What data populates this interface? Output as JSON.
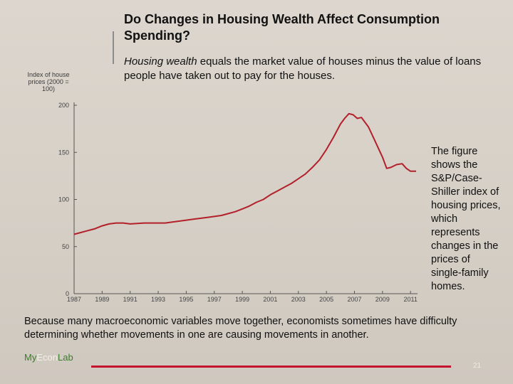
{
  "slide": {
    "title": "Do Changes in Housing Wealth Affect Consumption Spending?",
    "subtitle_em": "Housing wealth",
    "subtitle_rest": " equals the market value of houses minus the value of loans people have taken out to pay for the houses.",
    "side_note": "The figure shows the S&P/Case-Shiller index of housing prices, which represents changes in the prices of single-family homes.",
    "bottom_text": "Because many macroeconomic variables move together, economists sometimes have difficulty determining whether movements in one are causing movements in another.",
    "logo": {
      "my": "My",
      "econ": "Econ",
      "lab": "Lab"
    },
    "page_number": "21"
  },
  "chart_data": {
    "type": "line",
    "ylabel": "Index of house prices (2000 = 100)",
    "xlabel": "",
    "xlim": [
      1987,
      2011.5
    ],
    "ylim": [
      0,
      200
    ],
    "y_ticks": [
      0,
      50,
      100,
      150,
      200
    ],
    "x_ticks": [
      1987,
      1989,
      1991,
      1993,
      1995,
      1997,
      1999,
      2001,
      2003,
      2005,
      2007,
      2009,
      2011
    ],
    "grid": false,
    "line_color": "#b3202a",
    "series": [
      {
        "x": [
          1987,
          1987.5,
          1988,
          1988.5,
          1989,
          1989.5,
          1990,
          1990.5,
          1991,
          1991.5,
          1992,
          1993,
          1993.5,
          1994,
          1995,
          1995.5,
          1996,
          1996.5,
          1997,
          1997.5,
          1998,
          1998.5,
          1999,
          1999.5,
          2000,
          2000.5,
          2001,
          2001.5,
          2002,
          2002.5,
          2003,
          2003.5,
          2004,
          2004.5,
          2005,
          2005.5,
          2006,
          2006.3,
          2006.6,
          2006.9,
          2007.2,
          2007.5,
          2008,
          2008.5,
          2009,
          2009.3,
          2009.6,
          2010,
          2010.4,
          2010.7,
          2011,
          2011.4
        ],
        "y": [
          63,
          65,
          67,
          69,
          72,
          74,
          75,
          75,
          74,
          74.5,
          75,
          75,
          75,
          76,
          78,
          79,
          80,
          81,
          82,
          83,
          85,
          87,
          90,
          93,
          97,
          100,
          105,
          109,
          113,
          117,
          122,
          127,
          134,
          142,
          153,
          166,
          180,
          186,
          191,
          190,
          186,
          187,
          177,
          161,
          145,
          133,
          134,
          137,
          138,
          133,
          130,
          130
        ]
      }
    ]
  }
}
